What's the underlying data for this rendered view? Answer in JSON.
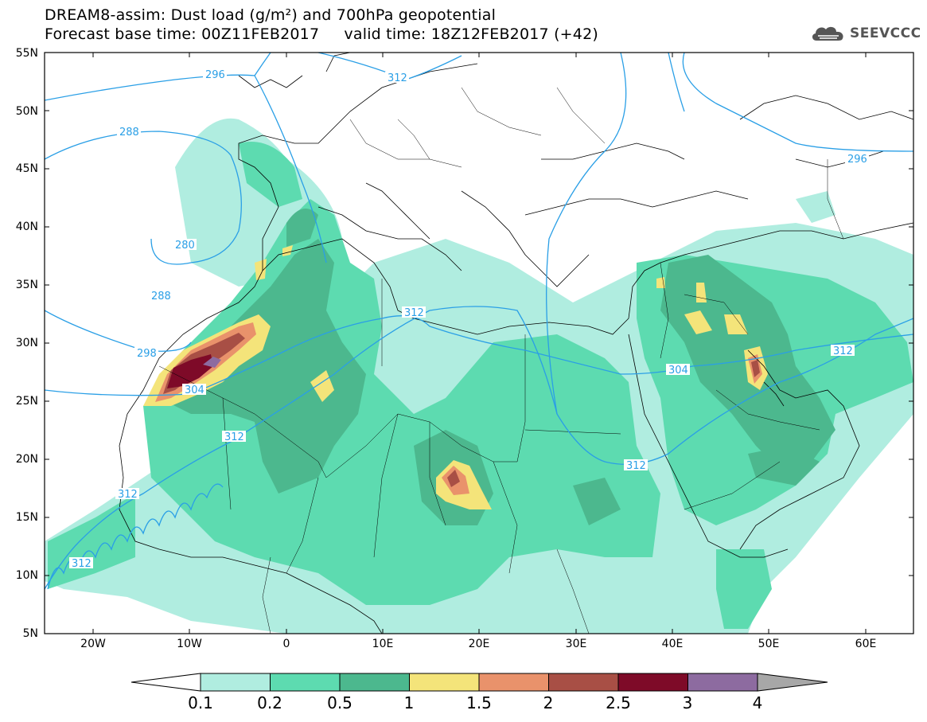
{
  "header": {
    "title_line1": "DREAM8-assim: Dust load (g/m²) and 700hPa geopotential",
    "title_line2": "Forecast base time: 00Z11FEB2017     valid time: 18Z12FEB2017 (+42)"
  },
  "logo": {
    "text": "SEEVCCC",
    "icon": "cloud-icon"
  },
  "map": {
    "lat_labels": [
      "55N",
      "50N",
      "45N",
      "40N",
      "35N",
      "30N",
      "25N",
      "20N",
      "15N",
      "10N",
      "5N"
    ],
    "lon_labels": [
      "20W",
      "10W",
      "0",
      "10E",
      "20E",
      "30E",
      "40E",
      "50E",
      "60E"
    ],
    "contour_labels": [
      "296",
      "312",
      "288",
      "280",
      "288",
      "298",
      "304",
      "312",
      "312",
      "312",
      "312",
      "304",
      "312",
      "296",
      "312"
    ]
  },
  "colorbar": {
    "ticks": [
      "0.1",
      "0.2",
      "0.5",
      "1",
      "1.5",
      "2",
      "2.5",
      "3",
      "4"
    ],
    "colors": [
      "#b0ede0",
      "#5ddbb0",
      "#4cb88e",
      "#f4e47a",
      "#e9926b",
      "#a84f45",
      "#7e0a28",
      "#8d6ba0",
      "#a7a7a7"
    ]
  }
}
